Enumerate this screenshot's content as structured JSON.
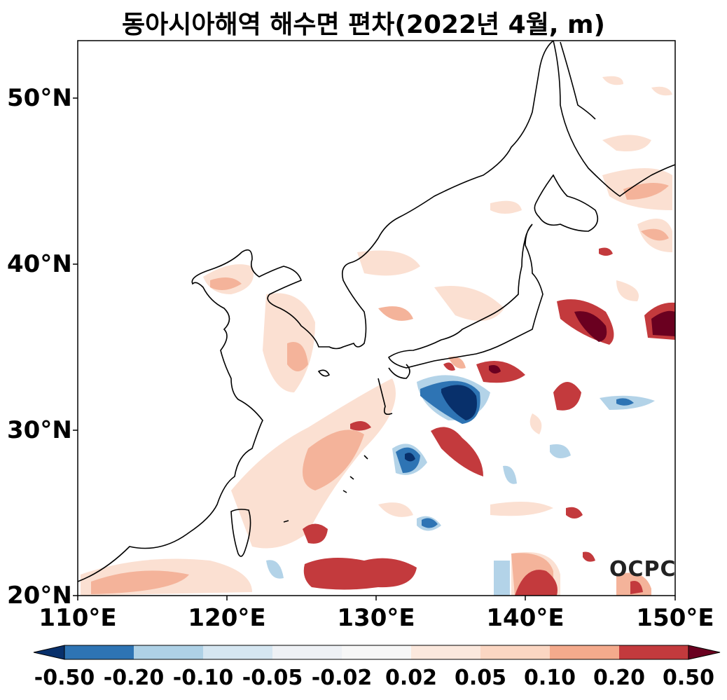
{
  "title": "동아시아해역 해수면 편차(2022년 4월, m)",
  "logo": "OCPC",
  "y_ticks": [
    "50°N",
    "40°N",
    "30°N",
    "20°N"
  ],
  "x_ticks": [
    "110°E",
    "120°E",
    "130°E",
    "140°E",
    "150°E"
  ],
  "colorbar": {
    "labels": [
      "-0.50",
      "-0.20",
      "-0.10",
      "-0.05",
      "-0.02",
      "0.02",
      "0.05",
      "0.10",
      "0.20",
      "0.50"
    ],
    "colors": [
      "#08306b",
      "#2e74b4",
      "#aed1e6",
      "#d5e6f1",
      "#eef1f5",
      "#f7f7f7",
      "#fbe8dd",
      "#fbd6c2",
      "#f4aa8c",
      "#c33a3d",
      "#6a0020"
    ]
  },
  "chart_data": {
    "type": "heatmap",
    "title": "동아시아해역 해수면 편차(2022년 4월, m)",
    "lon_range": [
      110,
      150
    ],
    "lat_range": [
      20,
      53.5
    ],
    "units": "m",
    "anomaly_regions": [
      {
        "lon": 128.5,
        "lat": 21.5,
        "value": 0.35
      },
      {
        "lon": 141.0,
        "lat": 20.5,
        "value": 0.35
      },
      {
        "lon": 136.0,
        "lat": 31.8,
        "value": -0.55
      },
      {
        "lon": 132.0,
        "lat": 28.3,
        "value": -0.4
      },
      {
        "lon": 134.5,
        "lat": 24.4,
        "value": -0.25
      },
      {
        "lon": 144.0,
        "lat": 36.3,
        "value": 0.55
      },
      {
        "lon": 149.0,
        "lat": 36.5,
        "value": 0.55
      },
      {
        "lon": 138.5,
        "lat": 33.4,
        "value": 0.5
      },
      {
        "lon": 141.5,
        "lat": 31.2,
        "value": 0.3
      },
      {
        "lon": 135.0,
        "lat": 29.2,
        "value": 0.3
      },
      {
        "lon": 126.0,
        "lat": 23.7,
        "value": 0.3
      },
      {
        "lon": 143.5,
        "lat": 24.8,
        "value": 0.3
      },
      {
        "lon": 145.5,
        "lat": 31.3,
        "value": -0.15
      },
      {
        "lon": 129.0,
        "lat": 30.0,
        "value": 0.15
      },
      {
        "lon": 124.0,
        "lat": 26.5,
        "value": 0.1
      }
    ]
  }
}
